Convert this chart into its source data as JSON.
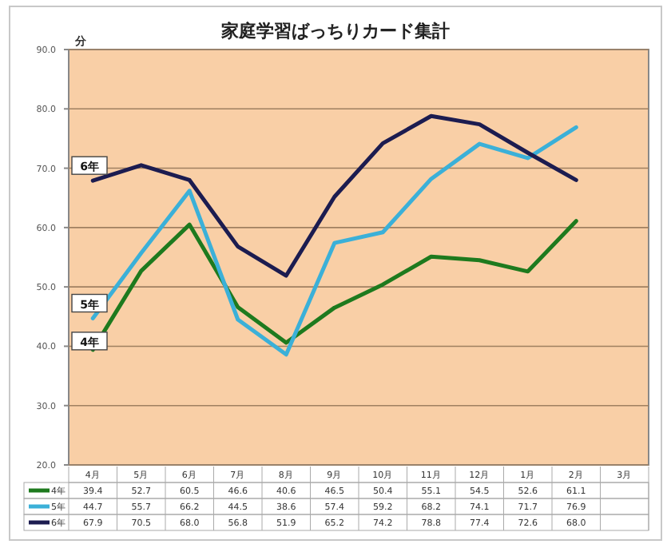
{
  "chart_data": {
    "type": "line",
    "title": "家庭学習ばっちりカード集計",
    "ylabel": "分",
    "categories": [
      "4月",
      "5月",
      "6月",
      "7月",
      "8月",
      "9月",
      "10月",
      "11月",
      "12月",
      "1月",
      "2月",
      "3月"
    ],
    "series": [
      {
        "name": "4年",
        "color": "#1e7a1e",
        "values": [
          39.4,
          52.7,
          60.5,
          46.6,
          40.6,
          46.5,
          50.4,
          55.1,
          54.5,
          52.6,
          61.1,
          null
        ],
        "value_labels": [
          "39.4",
          "52.7",
          "60.5",
          "46.6",
          "40.6",
          "46.5",
          "50.4",
          "55.1",
          "54.5",
          "52.6",
          "61.1",
          null
        ]
      },
      {
        "name": "5年",
        "color": "#3bb0d8",
        "values": [
          44.7,
          55.7,
          66.2,
          44.5,
          38.6,
          57.4,
          59.2,
          68.2,
          74.1,
          71.7,
          76.9,
          null
        ],
        "value_labels": [
          "44.7",
          "55.7",
          "66.2",
          "44.5",
          "38.6",
          "57.4",
          "59.2",
          "68.2",
          "74.1",
          "71.7",
          "76.9",
          null
        ]
      },
      {
        "name": "6年",
        "color": "#1c1c50",
        "values": [
          67.9,
          70.5,
          68.0,
          56.8,
          51.9,
          65.2,
          74.2,
          78.8,
          77.4,
          72.6,
          68.0,
          null
        ],
        "value_labels": [
          "67.9",
          "70.5",
          "68.0",
          "56.8",
          "51.9",
          "65.2",
          "74.2",
          "78.8",
          "77.4",
          "72.6",
          "68.0",
          null
        ]
      }
    ],
    "ylim": [
      20,
      90
    ],
    "yticks": [
      {
        "value": 20,
        "label": "20.0"
      },
      {
        "value": 30,
        "label": "30.0"
      },
      {
        "value": 40,
        "label": "40.0"
      },
      {
        "value": 50,
        "label": "50.0"
      },
      {
        "value": 60,
        "label": "60.0"
      },
      {
        "value": 70,
        "label": "70.0"
      },
      {
        "value": 80,
        "label": "80.0"
      },
      {
        "value": 90,
        "label": "90.0"
      }
    ],
    "grid": "y",
    "legend": "bottom",
    "marker": "none",
    "line_style": "solid"
  }
}
